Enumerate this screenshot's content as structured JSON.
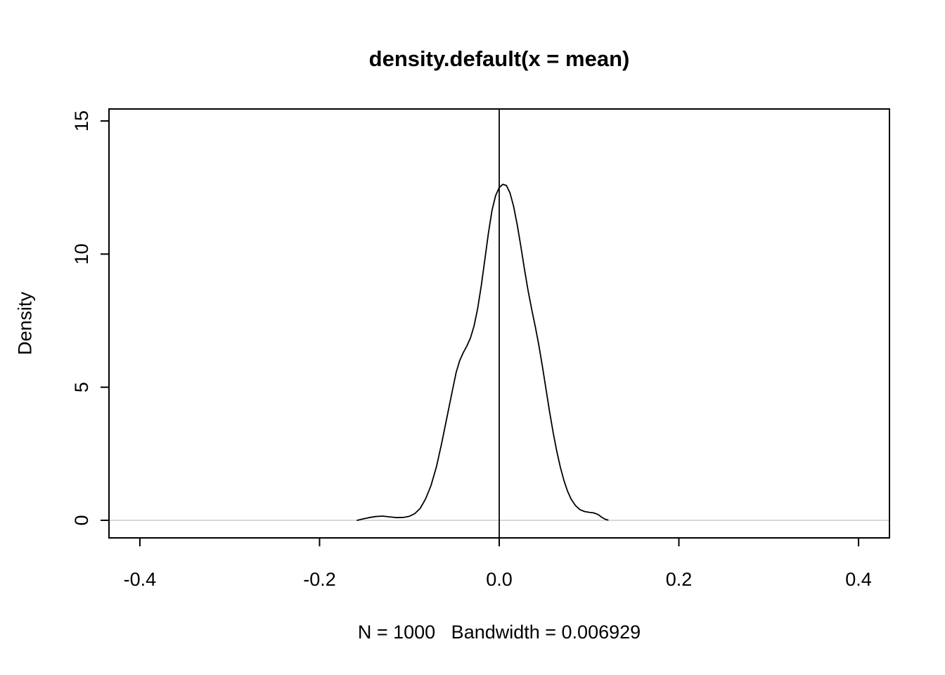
{
  "colors": {
    "background": "#ffffff",
    "axis": "#000000",
    "curve": "#000000",
    "zero_line": "#d9d9d9"
  },
  "chart_data": {
    "type": "line",
    "title": "density.default(x = mean)",
    "xlabel": "N = 1000   Bandwidth = 0.006929",
    "ylabel": "Density",
    "n": 1000,
    "bandwidth": 0.006929,
    "xlim": [
      -0.4344,
      0.4344
    ],
    "ylim": [
      -0.66,
      15.45
    ],
    "x_ticks": [
      -0.4,
      -0.2,
      0.0,
      0.2,
      0.4
    ],
    "x_tick_labels": [
      "-0.4",
      "-0.2",
      "0.0",
      "0.2",
      "0.4"
    ],
    "y_ticks": [
      0,
      5,
      10,
      15
    ],
    "y_tick_labels": [
      "0",
      "5",
      "10",
      "15"
    ],
    "grid": false,
    "legend": "none",
    "reference_lines": {
      "vertical_x": 0.0,
      "horizontal_y": 0.0
    },
    "series": [
      {
        "name": "density",
        "color": "#000000",
        "points": [
          [
            -0.158,
            0.0
          ],
          [
            -0.152,
            0.05
          ],
          [
            -0.145,
            0.1
          ],
          [
            -0.138,
            0.14
          ],
          [
            -0.13,
            0.16
          ],
          [
            -0.122,
            0.13
          ],
          [
            -0.114,
            0.1
          ],
          [
            -0.106,
            0.11
          ],
          [
            -0.1,
            0.15
          ],
          [
            -0.094,
            0.25
          ],
          [
            -0.088,
            0.45
          ],
          [
            -0.082,
            0.8
          ],
          [
            -0.076,
            1.3
          ],
          [
            -0.07,
            2.0
          ],
          [
            -0.064,
            2.9
          ],
          [
            -0.058,
            3.9
          ],
          [
            -0.052,
            4.9
          ],
          [
            -0.048,
            5.55
          ],
          [
            -0.044,
            6.0
          ],
          [
            -0.04,
            6.3
          ],
          [
            -0.036,
            6.55
          ],
          [
            -0.032,
            6.85
          ],
          [
            -0.028,
            7.3
          ],
          [
            -0.024,
            7.95
          ],
          [
            -0.02,
            8.8
          ],
          [
            -0.016,
            9.8
          ],
          [
            -0.012,
            10.8
          ],
          [
            -0.008,
            11.65
          ],
          [
            -0.004,
            12.2
          ],
          [
            0.0,
            12.5
          ],
          [
            0.004,
            12.62
          ],
          [
            0.008,
            12.58
          ],
          [
            0.012,
            12.3
          ],
          [
            0.016,
            11.8
          ],
          [
            0.02,
            11.1
          ],
          [
            0.024,
            10.3
          ],
          [
            0.028,
            9.45
          ],
          [
            0.032,
            8.65
          ],
          [
            0.036,
            7.95
          ],
          [
            0.04,
            7.3
          ],
          [
            0.044,
            6.6
          ],
          [
            0.048,
            5.8
          ],
          [
            0.052,
            4.95
          ],
          [
            0.056,
            4.1
          ],
          [
            0.06,
            3.3
          ],
          [
            0.064,
            2.6
          ],
          [
            0.068,
            2.0
          ],
          [
            0.072,
            1.5
          ],
          [
            0.076,
            1.1
          ],
          [
            0.08,
            0.8
          ],
          [
            0.085,
            0.55
          ],
          [
            0.09,
            0.4
          ],
          [
            0.095,
            0.33
          ],
          [
            0.1,
            0.3
          ],
          [
            0.105,
            0.28
          ],
          [
            0.11,
            0.22
          ],
          [
            0.114,
            0.12
          ],
          [
            0.118,
            0.04
          ],
          [
            0.121,
            0.01
          ]
        ]
      }
    ]
  }
}
